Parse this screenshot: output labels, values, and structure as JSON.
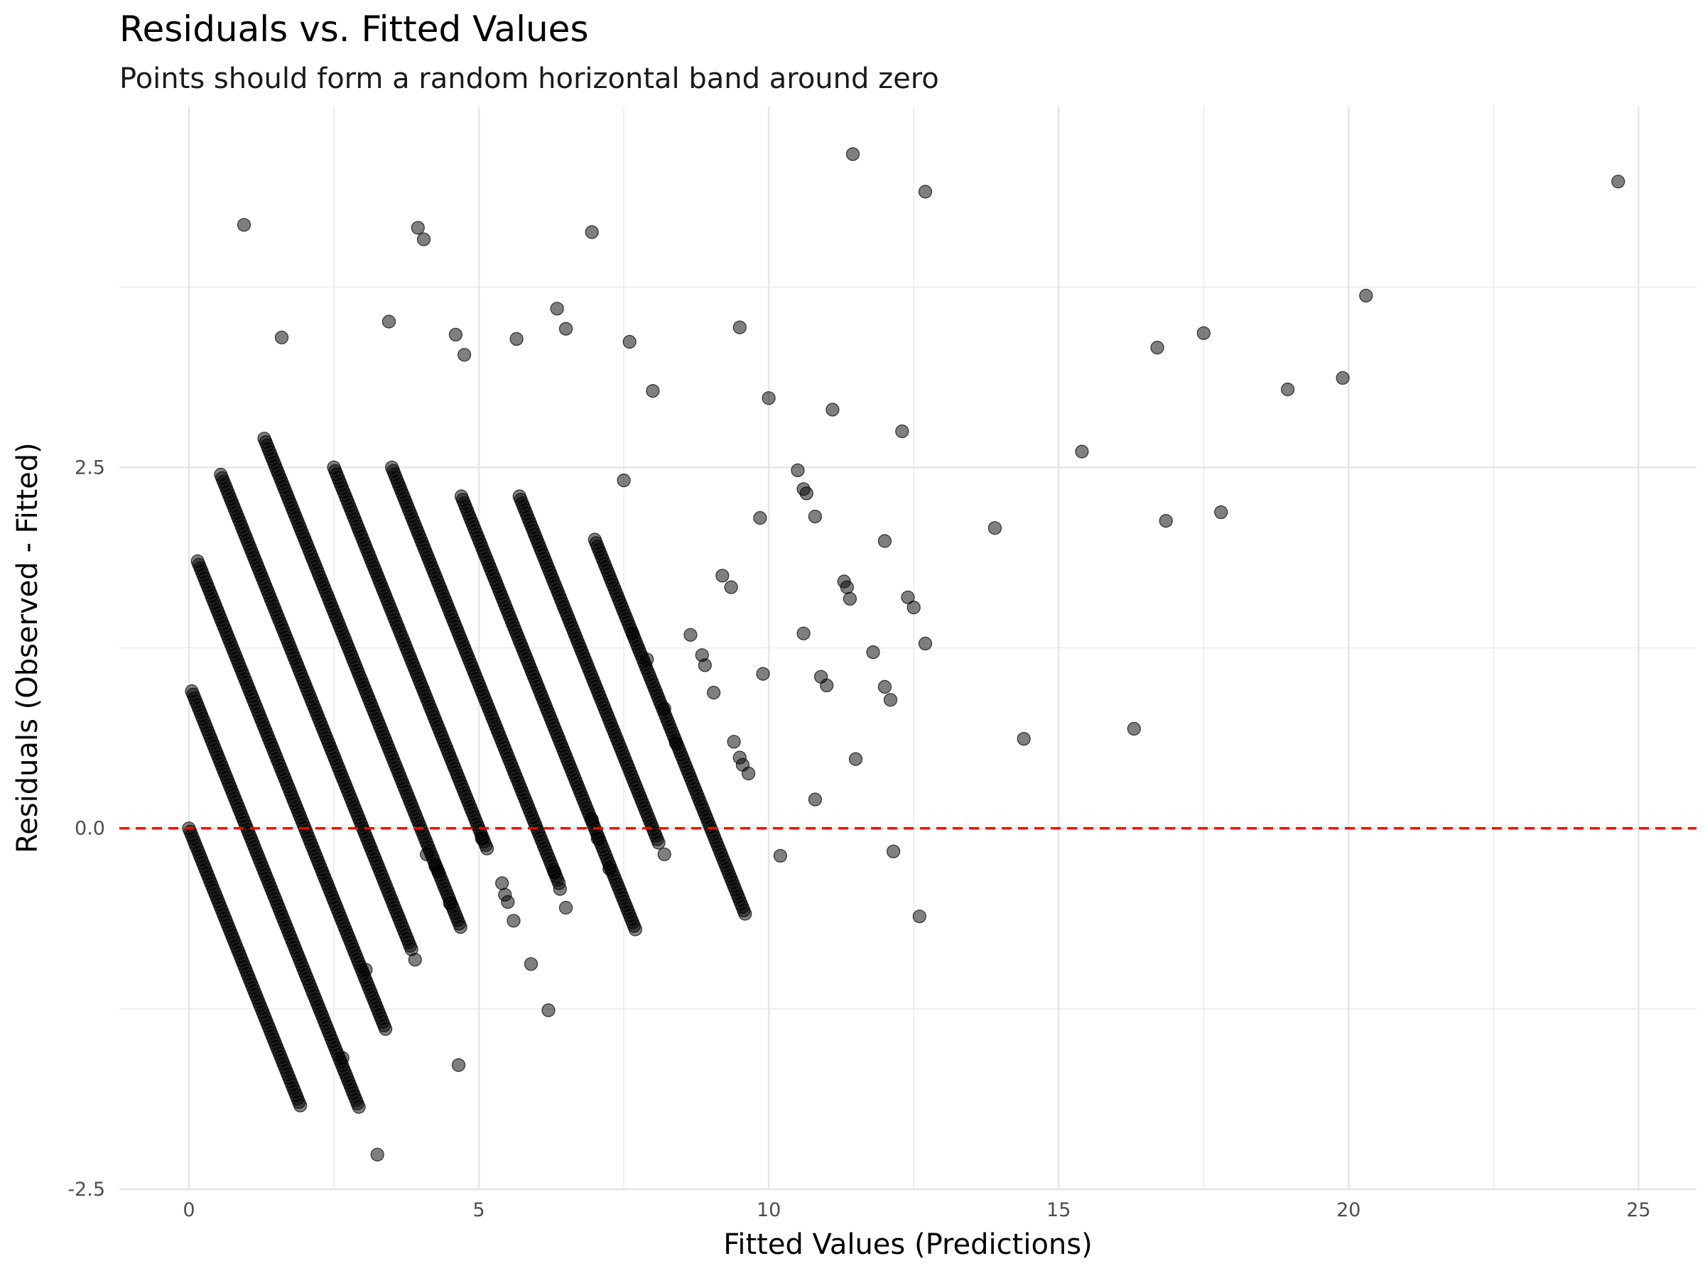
{
  "chart_data": {
    "type": "scatter",
    "title": "Residuals vs. Fitted Values",
    "subtitle": "Points should form a random horizontal band around zero",
    "xlabel": "Fitted Values (Predictions)",
    "ylabel": "Residuals (Observed - Fitted)",
    "xlim": [
      -1.2,
      26.0
    ],
    "ylim": [
      -2.5,
      5.0
    ],
    "x_ticks": [
      0,
      5,
      10,
      15,
      20,
      25
    ],
    "x_tick_labels": [
      "0",
      "5",
      "10",
      "15",
      "20",
      "25"
    ],
    "y_ticks": [
      -2.5,
      0,
      2.5
    ],
    "y_tick_labels": [
      "-2.5",
      "0.0",
      "2.5"
    ],
    "grid": true,
    "reference_line": {
      "y": 0,
      "style": "dashed",
      "color": "#ff0000"
    },
    "point_color": "#000000",
    "point_opacity": 0.5,
    "diagonal_bands": [
      {
        "k": 0,
        "x_range": [
          0.0,
          1.92
        ]
      },
      {
        "k": 1,
        "x_range": [
          0.05,
          2.95
        ]
      },
      {
        "k": 2,
        "x_range": [
          0.15,
          3.4
        ]
      },
      {
        "k": 3,
        "x_range": [
          0.55,
          3.85
        ]
      },
      {
        "k": 4,
        "x_range": [
          1.3,
          4.7
        ]
      },
      {
        "k": 5,
        "x_range": [
          2.5,
          5.15
        ]
      },
      {
        "k": 6,
        "x_range": [
          3.5,
          6.4
        ]
      },
      {
        "k": 7,
        "x_range": [
          4.7,
          7.7
        ]
      },
      {
        "k": 8,
        "x_range": [
          5.7,
          8.1
        ]
      },
      {
        "k": 9,
        "x_range": [
          7.0,
          9.6
        ]
      }
    ],
    "points": [
      [
        0.95,
        4.18
      ],
      [
        1.6,
        3.4
      ],
      [
        3.45,
        3.51
      ],
      [
        3.95,
        4.16
      ],
      [
        4.05,
        4.08
      ],
      [
        4.6,
        3.42
      ],
      [
        4.75,
        3.28
      ],
      [
        5.65,
        3.39
      ],
      [
        6.35,
        3.6
      ],
      [
        6.5,
        3.46
      ],
      [
        6.95,
        4.13
      ],
      [
        7.6,
        3.37
      ],
      [
        8.0,
        3.03
      ],
      [
        9.5,
        3.47
      ],
      [
        10.0,
        2.98
      ],
      [
        11.1,
        2.9
      ],
      [
        11.45,
        4.67
      ],
      [
        12.3,
        2.75
      ],
      [
        12.7,
        4.41
      ],
      [
        15.4,
        2.61
      ],
      [
        16.7,
        3.33
      ],
      [
        17.5,
        3.43
      ],
      [
        18.95,
        3.04
      ],
      [
        19.9,
        3.12
      ],
      [
        20.3,
        3.69
      ],
      [
        24.65,
        4.48
      ],
      [
        13.9,
        2.08
      ],
      [
        14.4,
        0.62
      ],
      [
        16.3,
        0.69
      ],
      [
        16.85,
        2.13
      ],
      [
        17.8,
        2.19
      ],
      [
        11.8,
        1.22
      ],
      [
        12.0,
        1.99
      ],
      [
        12.0,
        0.98
      ],
      [
        12.1,
        0.89
      ],
      [
        12.15,
        -0.16
      ],
      [
        12.6,
        -0.61
      ],
      [
        12.7,
        1.28
      ],
      [
        12.4,
        1.6
      ],
      [
        12.5,
        1.53
      ],
      [
        11.3,
        1.71
      ],
      [
        11.35,
        1.67
      ],
      [
        11.4,
        1.59
      ],
      [
        11.5,
        0.48
      ],
      [
        10.6,
        2.35
      ],
      [
        10.65,
        2.32
      ],
      [
        10.8,
        2.16
      ],
      [
        10.9,
        1.05
      ],
      [
        11.0,
        0.99
      ],
      [
        10.8,
        0.2
      ],
      [
        10.2,
        -0.19
      ],
      [
        10.5,
        2.48
      ],
      [
        10.6,
        1.35
      ],
      [
        9.2,
        1.75
      ],
      [
        9.35,
        1.67
      ],
      [
        9.9,
        1.07
      ],
      [
        9.85,
        2.15
      ],
      [
        9.4,
        0.6
      ],
      [
        9.5,
        0.49
      ],
      [
        9.55,
        0.44
      ],
      [
        9.65,
        0.38
      ],
      [
        8.65,
        1.34
      ],
      [
        8.85,
        1.2
      ],
      [
        8.9,
        1.13
      ],
      [
        9.05,
        0.94
      ],
      [
        8.2,
        0.83
      ],
      [
        8.4,
        0.59
      ],
      [
        8.2,
        -0.18
      ],
      [
        7.5,
        2.41
      ],
      [
        7.9,
        1.17
      ],
      [
        7.65,
        1.35
      ],
      [
        6.95,
        0.06
      ],
      [
        7.05,
        -0.07
      ],
      [
        7.25,
        -0.28
      ],
      [
        6.3,
        -0.3
      ],
      [
        6.4,
        -0.42
      ],
      [
        6.5,
        -0.55
      ],
      [
        6.2,
        -1.26
      ],
      [
        5.6,
        -0.64
      ],
      [
        5.9,
        -0.94
      ],
      [
        4.65,
        -1.64
      ],
      [
        3.25,
        -2.26
      ],
      [
        2.65,
        -1.59
      ],
      [
        3.05,
        -0.98
      ],
      [
        3.9,
        -0.91
      ],
      [
        5.4,
        -0.38
      ],
      [
        5.45,
        -0.46
      ],
      [
        5.5,
        -0.51
      ],
      [
        4.3,
        -0.3
      ],
      [
        4.25,
        -0.26
      ],
      [
        4.1,
        -0.18
      ],
      [
        4.5,
        -0.52
      ],
      [
        5.05,
        -0.07
      ]
    ]
  }
}
